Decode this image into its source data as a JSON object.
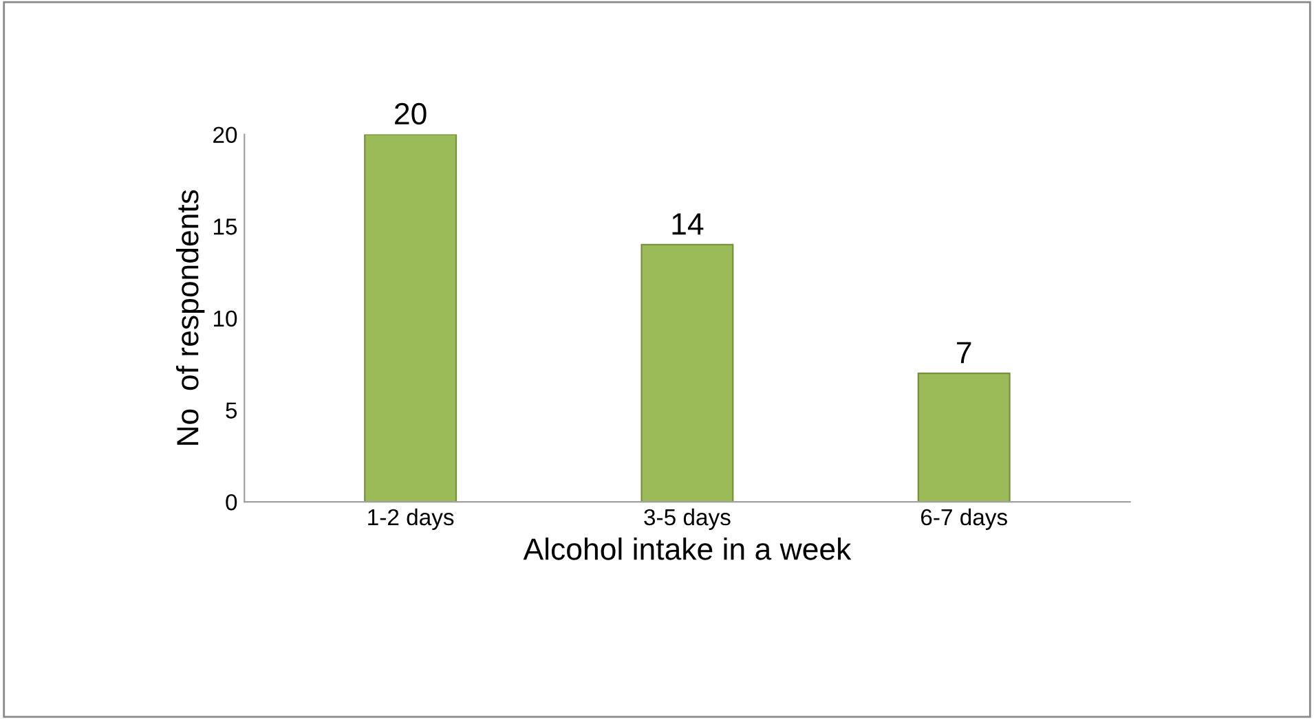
{
  "chart_data": {
    "type": "bar",
    "xlabel": "Alcohol intake in a week",
    "ylabel": "No  of respondents",
    "categories": [
      "1-2 days",
      "3-5 days",
      "6-7 days"
    ],
    "values": [
      20,
      14,
      7
    ],
    "color": "#9bbb59",
    "ylim": [
      0,
      20
    ],
    "yticks": [
      0,
      5,
      10,
      15,
      20
    ],
    "grid": false,
    "data_labels": true
  }
}
